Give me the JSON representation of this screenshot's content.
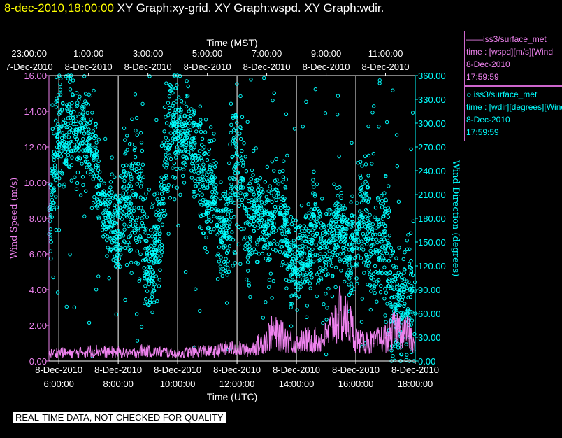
{
  "header": {
    "timestamp": "8-dec-2010,18:00:00",
    "graphs": "XY Graph:xy-grid.  XY Graph:wspd.  XY Graph:wdir."
  },
  "colors": {
    "speed": "#ee82ee",
    "direction": "#00ffff",
    "bg": "#000000",
    "axis": "#ffffff",
    "header_ts": "#ffff00"
  },
  "legend": [
    {
      "marker": "line",
      "title": "iss3/surface_met",
      "var": "time : [wspd][m/s][Wind",
      "date": "8-Dec-2010",
      "time": "17:59:59",
      "color": "#ee82ee"
    },
    {
      "marker": "circle",
      "title": "iss3/surface_met",
      "var": "time : [wdir][degrees][Wind",
      "date": "8-Dec-2010",
      "time": "17:59:59",
      "color": "#00ffff"
    }
  ],
  "footer": "REAL-TIME DATA, NOT CHECKED FOR QUALITY",
  "chart_data": {
    "type": "scatter",
    "top_axis": {
      "label": "Time (MST)",
      "ticks": [
        {
          "t": 5.0,
          "time": "23:00:00",
          "date": "7-Dec-2010"
        },
        {
          "t": 7.0,
          "time": "1:00:00",
          "date": "8-Dec-2010"
        },
        {
          "t": 9.0,
          "time": "3:00:00",
          "date": "8-Dec-2010"
        },
        {
          "t": 11.0,
          "time": "5:00:00",
          "date": "8-Dec-2010"
        },
        {
          "t": 13.0,
          "time": "7:00:00",
          "date": "8-Dec-2010"
        },
        {
          "t": 15.0,
          "time": "9:00:00",
          "date": "8-Dec-2010"
        },
        {
          "t": 17.0,
          "time": "11:00:00",
          "date": "8-Dec-2010"
        }
      ]
    },
    "bottom_axis": {
      "label": "Time (UTC)",
      "range": [
        "8-Dec-2010 5:40:00",
        "8-Dec-2010 18:00:00"
      ],
      "ticks": [
        {
          "t": 6.0,
          "date": "8-Dec-2010",
          "time": "6:00:00"
        },
        {
          "t": 8.0,
          "date": "8-Dec-2010",
          "time": "8:00:00"
        },
        {
          "t": 10.0,
          "date": "8-Dec-2010",
          "time": "10:00:00"
        },
        {
          "t": 12.0,
          "date": "8-Dec-2010",
          "time": "12:00:00"
        },
        {
          "t": 14.0,
          "date": "8-Dec-2010",
          "time": "14:00:00"
        },
        {
          "t": 16.0,
          "date": "8-Dec-2010",
          "time": "16:00:00"
        },
        {
          "t": 18.0,
          "date": "8-Dec-2010",
          "time": "18:00:00"
        }
      ]
    },
    "left_axis": {
      "label": "Wind Speed (m/s)",
      "ylim": [
        0,
        16
      ],
      "ticks": [
        "0.00",
        "2.00",
        "4.00",
        "6.00",
        "8.00",
        "10.00",
        "12.00",
        "14.00",
        "16.00"
      ]
    },
    "right_axis": {
      "label": "Wind Direction (degrees)",
      "ylim": [
        0,
        360
      ],
      "ticks": [
        "0.00",
        "30.00",
        "60.00",
        "90.00",
        "120.00",
        "150.00",
        "180.00",
        "210.00",
        "240.00",
        "270.00",
        "300.00",
        "330.00",
        "360.00"
      ]
    },
    "grid": {
      "vertical_at_bottom_ticks": true
    },
    "series": [
      {
        "name": "iss3/surface_met time : [wspd][m/s][Wind",
        "style": "line",
        "axis": "left",
        "x": [
          5.67,
          6.0,
          6.4,
          6.8,
          7.2,
          7.6,
          8.0,
          8.4,
          8.8,
          9.2,
          9.6,
          10.0,
          10.4,
          10.8,
          11.2,
          11.6,
          12.0,
          12.4,
          12.8,
          13.2,
          13.6,
          14.0,
          14.4,
          14.8,
          15.0,
          15.2,
          15.4,
          15.6,
          15.8,
          16.0,
          16.2,
          16.4,
          16.6,
          16.8,
          17.0,
          17.2,
          17.4,
          17.6,
          17.8,
          18.0
        ],
        "y": [
          0.4,
          0.5,
          0.4,
          0.5,
          0.6,
          0.5,
          0.5,
          0.4,
          0.6,
          0.5,
          0.5,
          0.4,
          0.5,
          0.6,
          0.5,
          0.7,
          0.7,
          0.6,
          1.0,
          1.6,
          1.3,
          1.0,
          1.2,
          1.1,
          1.4,
          1.9,
          2.6,
          2.4,
          2.1,
          1.3,
          1.0,
          1.1,
          1.0,
          1.2,
          1.3,
          1.6,
          1.8,
          1.7,
          1.5,
          0.6
        ]
      },
      {
        "name": "iss3/surface_met time : [wdir][degrees][Wind",
        "style": "markers",
        "axis": "right",
        "x": [
          5.67,
          5.8,
          6.0,
          6.2,
          6.4,
          6.6,
          6.8,
          7.0,
          7.2,
          7.4,
          7.6,
          7.8,
          8.0,
          8.2,
          8.4,
          8.6,
          8.8,
          9.0,
          9.2,
          9.4,
          9.6,
          9.8,
          10.0,
          10.2,
          10.4,
          10.6,
          10.8,
          11.0,
          11.2,
          11.4,
          11.6,
          11.8,
          12.0,
          12.2,
          12.4,
          12.6,
          12.8,
          13.0,
          13.2,
          13.4,
          13.6,
          13.8,
          14.0,
          14.2,
          14.4,
          14.6,
          14.8,
          15.0,
          15.2,
          15.4,
          15.6,
          15.8,
          16.0,
          16.2,
          16.4,
          16.6,
          16.8,
          17.0,
          17.2,
          17.4,
          17.6,
          17.8,
          18.0
        ],
        "y": [
          160,
          240,
          290,
          270,
          300,
          280,
          290,
          280,
          260,
          200,
          190,
          170,
          160,
          220,
          200,
          210,
          180,
          110,
          140,
          160,
          260,
          300,
          290,
          290,
          300,
          260,
          240,
          220,
          230,
          170,
          160,
          200,
          250,
          230,
          140,
          190,
          180,
          170,
          180,
          190,
          180,
          120,
          130,
          140,
          130,
          180,
          150,
          120,
          160,
          170,
          160,
          130,
          150,
          200,
          180,
          110,
          160,
          170,
          80,
          70,
          60,
          90,
          60
        ],
        "spread": [
          40,
          70,
          80,
          60,
          70,
          60,
          60,
          70,
          70,
          60,
          50,
          50,
          60,
          90,
          90,
          90,
          80,
          60,
          70,
          60,
          70,
          70,
          60,
          50,
          50,
          60,
          70,
          80,
          70,
          60,
          60,
          80,
          90,
          90,
          80,
          60,
          50,
          60,
          60,
          70,
          60,
          60,
          60,
          60,
          60,
          60,
          60,
          60,
          60,
          60,
          50,
          60,
          60,
          70,
          80,
          70,
          70,
          90,
          90,
          80,
          70,
          90,
          100
        ]
      }
    ]
  }
}
